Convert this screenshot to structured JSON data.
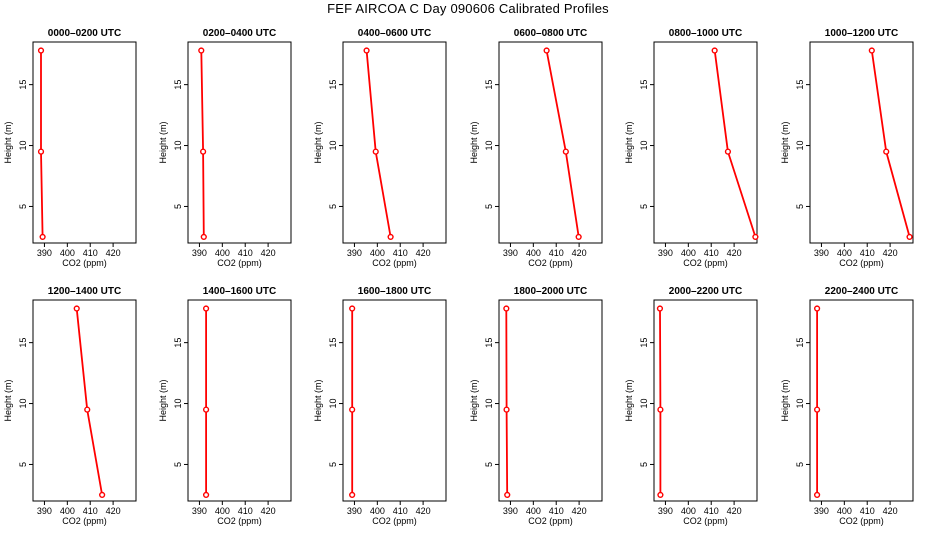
{
  "title": "FEF AIRCOA C  Day 090606  Calibrated Profiles",
  "chart_data": {
    "type": "line",
    "xlabel": "CO2 (ppm)",
    "ylabel": "Height (m)",
    "xlim": [
      385,
      430
    ],
    "ylim": [
      2,
      18.5
    ],
    "xticks": [
      390,
      400,
      410,
      420
    ],
    "yticks": [
      5,
      10,
      15
    ],
    "heights": [
      17.8,
      9.5,
      2.5
    ],
    "series_color": "#ff0000",
    "panels": [
      {
        "title": "0000–0200 UTC",
        "values": [
          388.5,
          388.5,
          389.2
        ]
      },
      {
        "title": "0200–0400 UTC",
        "values": [
          390.8,
          391.6,
          391.9
        ]
      },
      {
        "title": "0400–0600 UTC",
        "values": [
          395.3,
          399.3,
          405.8
        ]
      },
      {
        "title": "0600–0800 UTC",
        "values": [
          405.8,
          414.2,
          419.8
        ]
      },
      {
        "title": "0800–1000 UTC",
        "values": [
          411.5,
          417.3,
          429.3
        ]
      },
      {
        "title": "1000–1200 UTC",
        "values": [
          412.0,
          418.3,
          428.5
        ]
      },
      {
        "title": "1200–1400 UTC",
        "values": [
          404.1,
          408.7,
          415.2
        ]
      },
      {
        "title": "1400–1600 UTC",
        "values": [
          392.9,
          392.9,
          392.9
        ]
      },
      {
        "title": "1600–1800 UTC",
        "values": [
          389.0,
          389.0,
          389.0
        ]
      },
      {
        "title": "1800–2000 UTC",
        "values": [
          388.2,
          388.3,
          388.6
        ]
      },
      {
        "title": "2000–2200 UTC",
        "values": [
          387.6,
          387.8,
          387.8
        ]
      },
      {
        "title": "2200–2400 UTC",
        "values": [
          388.1,
          388.1,
          388.1
        ]
      }
    ]
  }
}
